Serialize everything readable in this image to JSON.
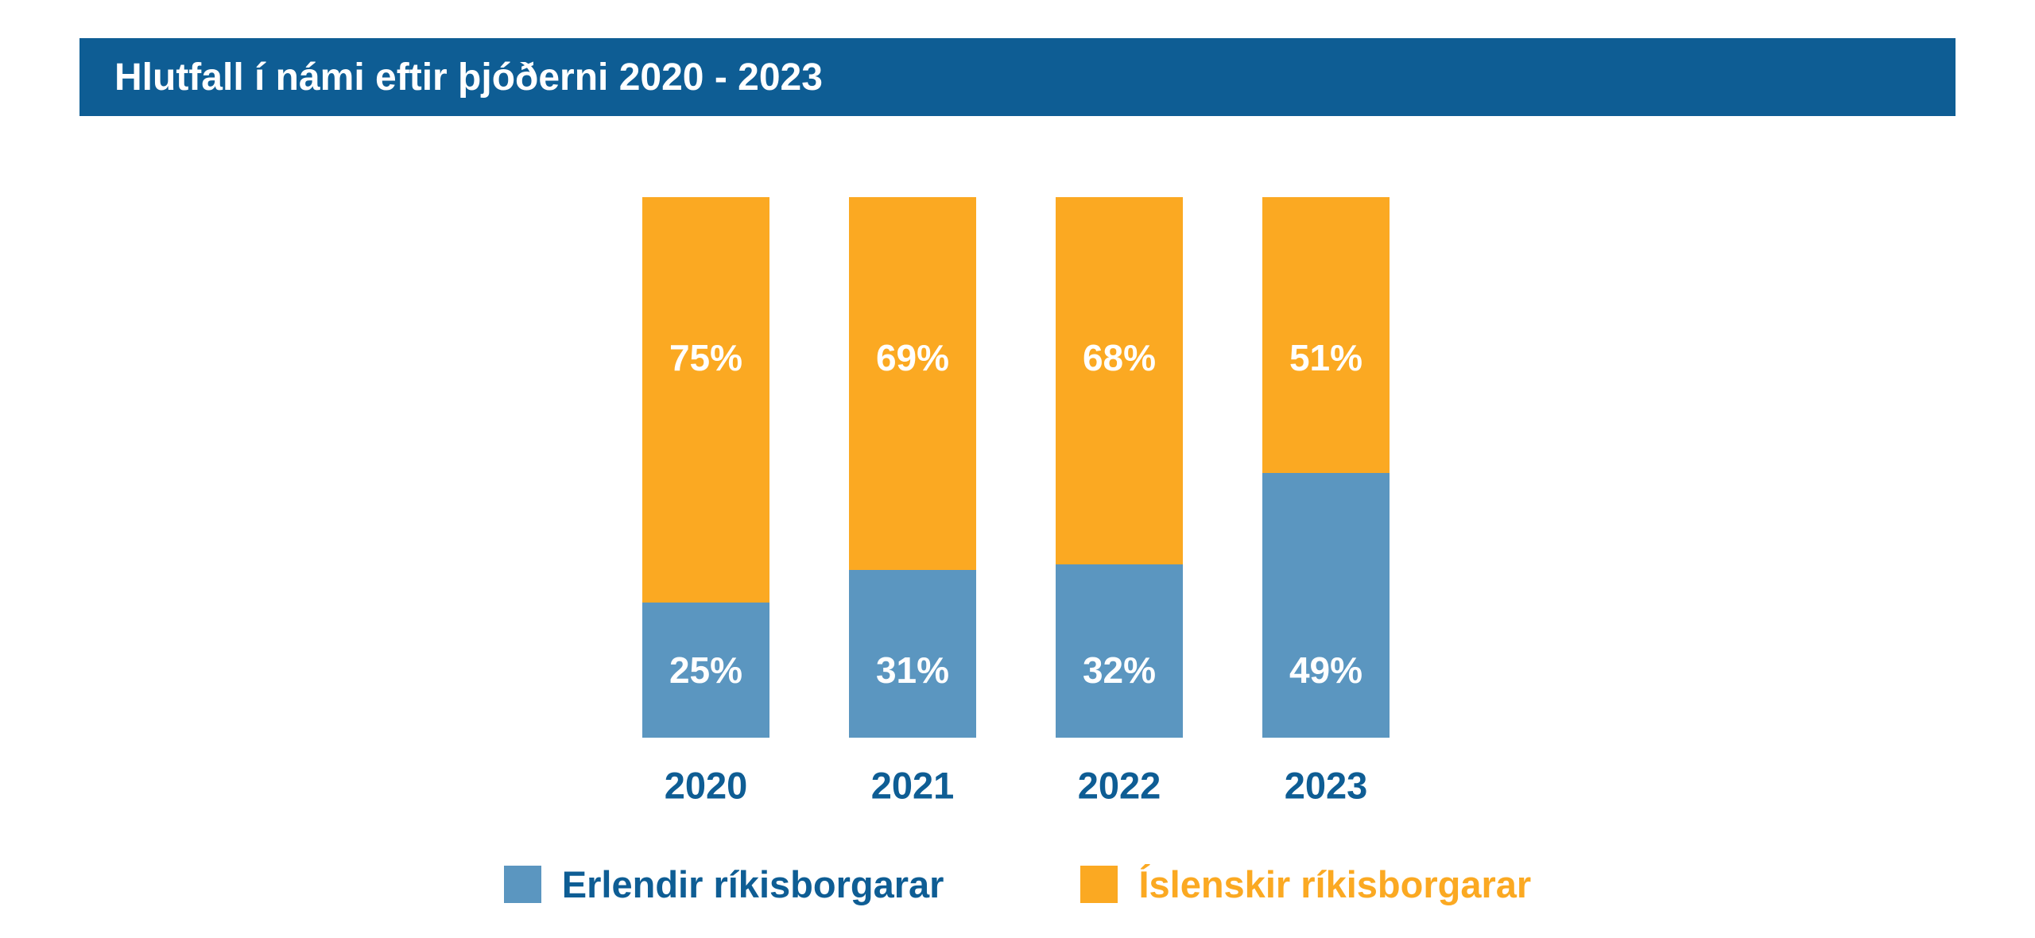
{
  "title": {
    "text": "Hlutfall í námi eftir þjóðerni 2020 - 2023"
  },
  "colors": {
    "background": "#FFFFFF",
    "header_bg": "#0E5D94",
    "header_text": "#FFFFFF",
    "blue_series": "#5B96C0",
    "orange_series": "#FBA922",
    "year_label_text": "#0E5D94",
    "value_label_text": "#FFFFFF"
  },
  "chart_data": {
    "type": "bar",
    "stacked": true,
    "title": "Hlutfall í námi eftir þjóðerni 2020 - 2023",
    "categories": [
      "2020",
      "2021",
      "2022",
      "2023"
    ],
    "series": [
      {
        "name": "Erlendir ríkisborgarar",
        "color": "#5B96C0",
        "position": "bottom",
        "values": [
          25,
          31,
          32,
          49
        ],
        "labels": [
          "25%",
          "31%",
          "32%",
          "49%"
        ]
      },
      {
        "name": "Íslenskir ríkisborgarar",
        "color": "#FBA922",
        "position": "top",
        "values": [
          75,
          69,
          68,
          51
        ],
        "labels": [
          "75%",
          "69%",
          "68%",
          "51%"
        ]
      }
    ],
    "xlabel": "",
    "ylabel": "",
    "ylim": [
      0,
      100
    ],
    "value_format": "percent",
    "grid": false,
    "axes_visible": false,
    "legend_position": "bottom"
  },
  "legend": {
    "items": [
      {
        "label": "Erlendir ríkisborgarar",
        "swatch_color": "#5B96C0",
        "text_color": "#0E5D94"
      },
      {
        "label": "Íslenskir ríkisborgarar",
        "swatch_color": "#FBA922",
        "text_color": "#FBA922"
      }
    ]
  }
}
